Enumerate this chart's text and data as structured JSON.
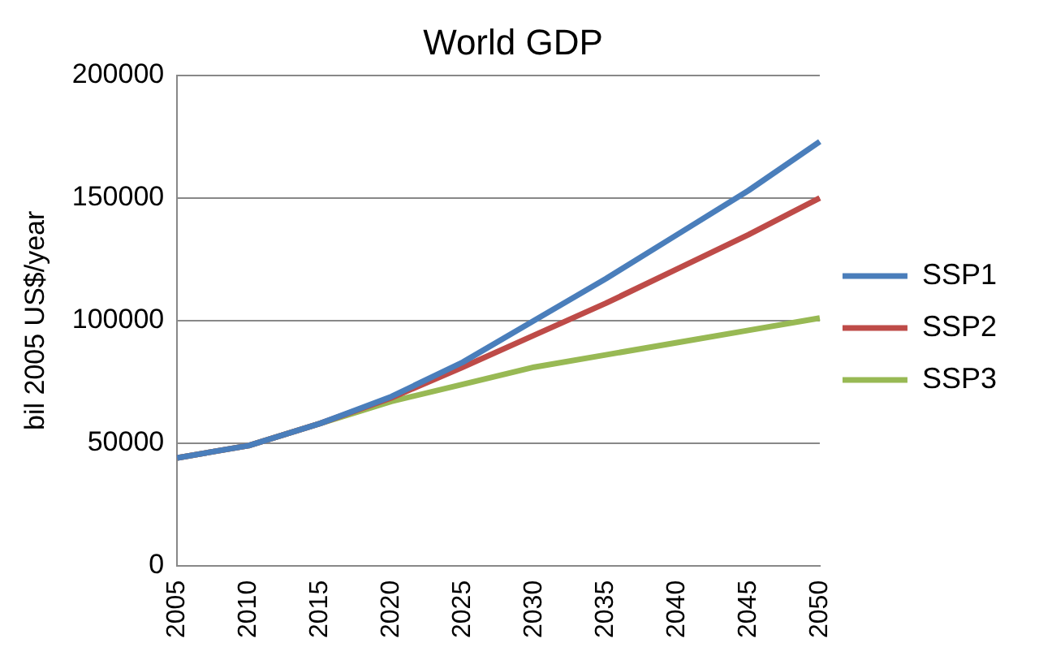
{
  "chart_data": {
    "type": "line",
    "title": "World GDP",
    "ylabel": "bil 2005 US$/year",
    "categories": [
      "2005",
      "2010",
      "2015",
      "2020",
      "2025",
      "2030",
      "2035",
      "2040",
      "2045",
      "2050"
    ],
    "series": [
      {
        "name": "SSP1",
        "color": "#4a7ebb",
        "values": [
          44000,
          49000,
          58000,
          69000,
          83000,
          100000,
          117000,
          135000,
          153000,
          173000
        ]
      },
      {
        "name": "SSP2",
        "color": "#be4b48",
        "values": [
          44000,
          49000,
          58000,
          68500,
          81000,
          94000,
          107000,
          121000,
          135000,
          150000
        ]
      },
      {
        "name": "SSP3",
        "color": "#98b954",
        "values": [
          44000,
          49000,
          58000,
          67000,
          74000,
          81000,
          86000,
          91000,
          96000,
          101000
        ]
      }
    ],
    "ylim": [
      0,
      200000
    ],
    "yticks": [
      0,
      50000,
      100000,
      150000,
      200000
    ],
    "grid": "y",
    "legend": "right",
    "marker": "none",
    "line_style": "solid"
  }
}
